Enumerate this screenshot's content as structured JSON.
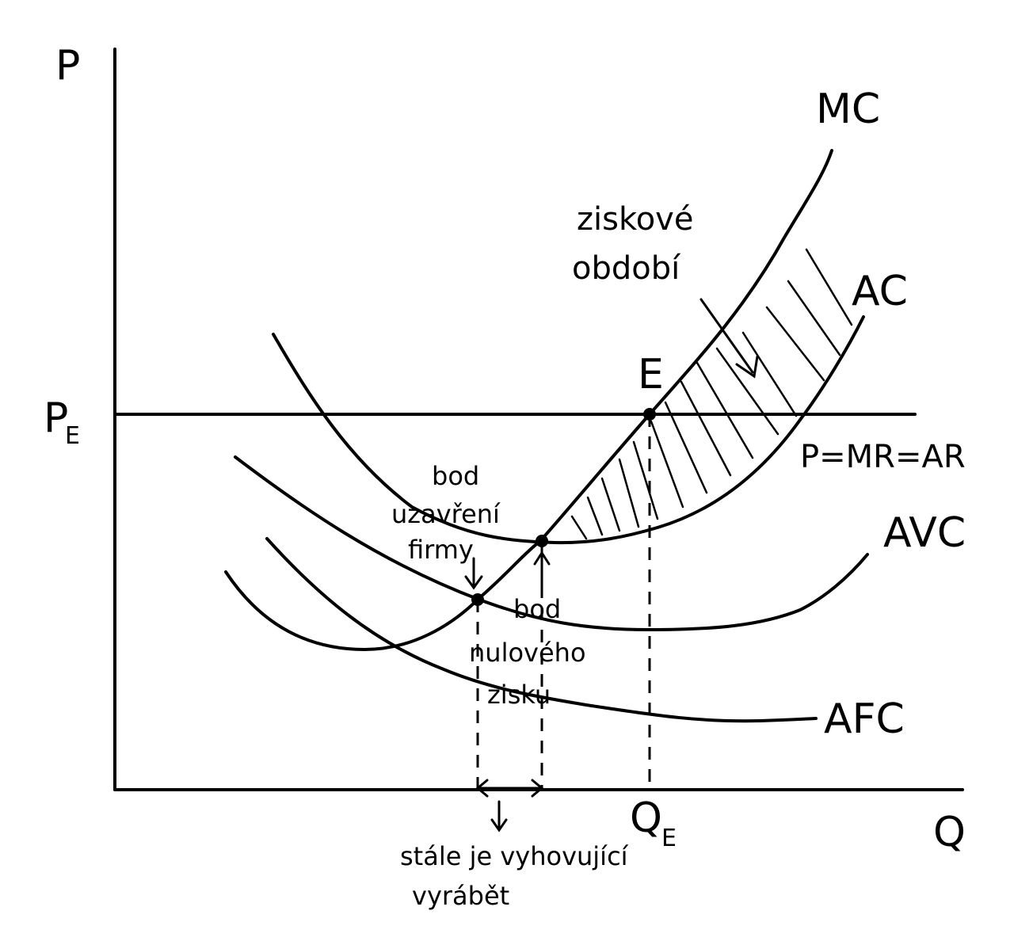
{
  "axes": {
    "y_label": "P",
    "x_label": "Q"
  },
  "price_line": {
    "axis_label_main": "P",
    "axis_label_sub": "E",
    "line_label": "P=MR=AR"
  },
  "curves": {
    "mc": "MC",
    "ac": "AC",
    "avc": "AVC",
    "afc": "AFC"
  },
  "equilibrium": {
    "point_label": "E",
    "q_label_main": "Q",
    "q_label_sub": "E"
  },
  "annotations": {
    "profit_region_line1": "ziskové",
    "profit_region_line2": "období",
    "shutdown_line1": "bod",
    "shutdown_line2": "uzavření",
    "shutdown_line3": "firmy",
    "breakeven_line1": "bod",
    "breakeven_line2": "nulového",
    "breakeven_line3": "zisku",
    "range_line1": "stále je vyhovující",
    "range_line2": "vyrábět"
  }
}
